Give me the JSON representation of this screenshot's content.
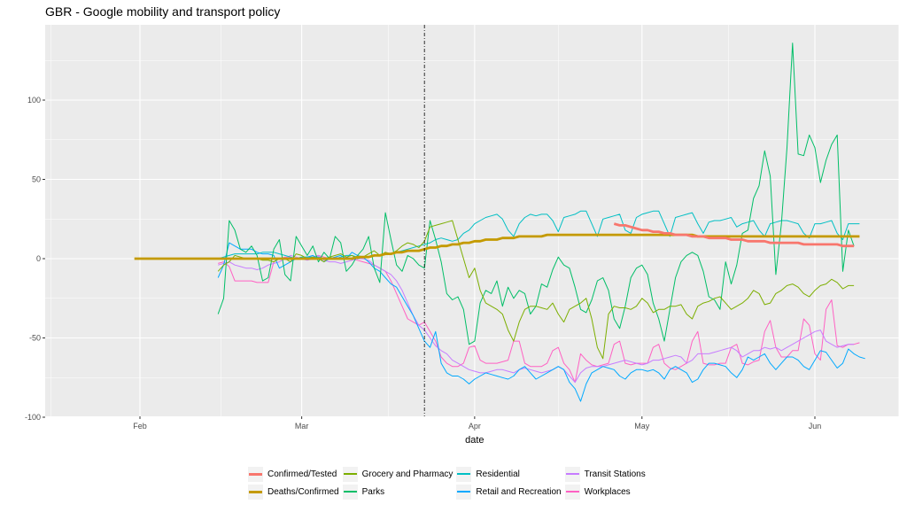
{
  "chart_data": {
    "type": "line",
    "title": "GBR - Google mobility and transport policy",
    "xlabel": "date",
    "ylabel": "",
    "x_type": "date",
    "xlim": [
      "2020-01-20",
      "2020-06-15"
    ],
    "ylim": [
      -100,
      140
    ],
    "x_ticks": [
      {
        "date": "2020-02-01",
        "label": "Feb"
      },
      {
        "date": "2020-03-01",
        "label": "Mar"
      },
      {
        "date": "2020-04-01",
        "label": "Apr"
      },
      {
        "date": "2020-05-01",
        "label": "May"
      },
      {
        "date": "2020-06-01",
        "label": "Jun"
      }
    ],
    "y_ticks": [
      -100,
      -50,
      0,
      50,
      100
    ],
    "grid": true,
    "legend_position": "bottom",
    "vline": {
      "date": "2020-03-23",
      "style": "dash-dot",
      "color": "#000000"
    },
    "series": [
      {
        "name": "Confirmed/Tested",
        "color": "#F8766D",
        "width": "thick",
        "start": "2020-04-26",
        "values": [
          22,
          21,
          21,
          20,
          19,
          18,
          18,
          17,
          17,
          16,
          16,
          15,
          15,
          15,
          14,
          14,
          14,
          13,
          13,
          13,
          13,
          12,
          12,
          12,
          11,
          11,
          11,
          11,
          10,
          10,
          10,
          10,
          10,
          10,
          9,
          9,
          9,
          9,
          9,
          9,
          9,
          8,
          8,
          8
        ]
      },
      {
        "name": "Deaths/Confirmed",
        "color": "#C49A00",
        "width": "thick",
        "start": "2020-01-31",
        "values": [
          0,
          0,
          0,
          0,
          0,
          0,
          0,
          0,
          0,
          0,
          0,
          0,
          0,
          0,
          0,
          0,
          0,
          0,
          0,
          0,
          0,
          0,
          0,
          0,
          0,
          0,
          0,
          0,
          0,
          0,
          0,
          0,
          0,
          0,
          0,
          0,
          0,
          0,
          0,
          0,
          1,
          1,
          1,
          2,
          2,
          3,
          3,
          4,
          4,
          5,
          5,
          5,
          6,
          7,
          7,
          8,
          8,
          9,
          9,
          10,
          10,
          11,
          11,
          12,
          12,
          12,
          13,
          13,
          13,
          14,
          14,
          14,
          14,
          14,
          15,
          15,
          15,
          15,
          15,
          15,
          15,
          15,
          15,
          15,
          15,
          15,
          15,
          15,
          15,
          15,
          15,
          15,
          15,
          15,
          15,
          15,
          15,
          15,
          15,
          15,
          15,
          14,
          14,
          14,
          14,
          14,
          14,
          14,
          14,
          14,
          14,
          14,
          14,
          14,
          14,
          14,
          14,
          14,
          14,
          14,
          14,
          14,
          14,
          14,
          14,
          14,
          14,
          14,
          14,
          14,
          14
        ]
      },
      {
        "name": "Grocery and Pharmacy",
        "color": "#7CAE00",
        "width": "thin",
        "start": "2020-02-15",
        "values": [
          -8,
          -4,
          -2,
          2,
          1,
          0,
          0,
          0,
          -1,
          -1,
          -2,
          0,
          0,
          -2,
          3,
          2,
          0,
          1,
          0,
          -2,
          1,
          2,
          3,
          1,
          2,
          0,
          1,
          3,
          5,
          2,
          4,
          3,
          5,
          8,
          10,
          9,
          7,
          11,
          20,
          21,
          22,
          23,
          24,
          12,
          0,
          -12,
          -6,
          -20,
          -28,
          -30,
          -32,
          -35,
          -45,
          -52,
          -40,
          -32,
          -30,
          -30,
          -31,
          -32,
          -28,
          -35,
          -40,
          -32,
          -30,
          -28,
          -25,
          -38,
          -56,
          -63,
          -35,
          -30,
          -31,
          -31,
          -32,
          -30,
          -25,
          -28,
          -34,
          -32,
          -32,
          -30,
          -30,
          -29,
          -35,
          -38,
          -30,
          -28,
          -27,
          -25,
          -24,
          -28,
          -32,
          -30,
          -28,
          -25,
          -20,
          -22,
          -29,
          -28,
          -22,
          -20,
          -17,
          -16,
          -18,
          -22,
          -24,
          -20,
          -17,
          -16,
          -13,
          -15,
          -19,
          -17,
          -17
        ]
      },
      {
        "name": "Parks",
        "color": "#00BE67",
        "width": "thin",
        "start": "2020-02-15",
        "values": [
          -35,
          -25,
          24,
          18,
          6,
          4,
          8,
          2,
          -14,
          -12,
          6,
          12,
          -10,
          -14,
          14,
          8,
          2,
          8,
          -2,
          4,
          0,
          14,
          10,
          -8,
          -4,
          2,
          6,
          14,
          -6,
          -15,
          29,
          12,
          -4,
          -8,
          2,
          0,
          -4,
          -6,
          24,
          12,
          -2,
          -22,
          -26,
          -24,
          -32,
          -54,
          -52,
          -28,
          -20,
          -22,
          -14,
          -30,
          -18,
          -25,
          -20,
          -22,
          -35,
          -30,
          -16,
          -18,
          -7,
          1,
          -4,
          -6,
          -18,
          -32,
          -34,
          -26,
          -14,
          -12,
          -20,
          -38,
          -44,
          -30,
          -12,
          -6,
          -4,
          -10,
          -28,
          -38,
          -52,
          -32,
          -12,
          -2,
          2,
          4,
          2,
          -8,
          -24,
          -26,
          -32,
          -2,
          -16,
          -4,
          16,
          18,
          38,
          46,
          68,
          52,
          -10,
          22,
          70,
          136,
          66,
          65,
          78,
          70,
          48,
          62,
          72,
          78,
          -8,
          18,
          8
        ]
      },
      {
        "name": "Residential",
        "color": "#00BFC4",
        "width": "thin",
        "start": "2020-02-15",
        "values": [
          0,
          1,
          2,
          3,
          3,
          3,
          3,
          3,
          4,
          4,
          4,
          3,
          2,
          1,
          0,
          1,
          1,
          1,
          1,
          0,
          1,
          0,
          1,
          2,
          2,
          1,
          1,
          1,
          2,
          2,
          3,
          3,
          4,
          5,
          6,
          7,
          8,
          9,
          10,
          12,
          13,
          12,
          11,
          12,
          16,
          18,
          22,
          24,
          26,
          27,
          28,
          25,
          18,
          14,
          22,
          26,
          28,
          27,
          28,
          28,
          24,
          17,
          26,
          27,
          28,
          30,
          30,
          22,
          14,
          25,
          26,
          27,
          28,
          18,
          16,
          26,
          28,
          29,
          30,
          30,
          22,
          14,
          26,
          27,
          28,
          29,
          22,
          16,
          23,
          24,
          24,
          25,
          26,
          20,
          22,
          23,
          24,
          18,
          14,
          22,
          23,
          24,
          24,
          23,
          22,
          16,
          13,
          22,
          22,
          23,
          24,
          16,
          12,
          22,
          22,
          22
        ]
      },
      {
        "name": "Retail and Recreation",
        "color": "#00A9FF",
        "width": "thin",
        "start": "2020-02-15",
        "values": [
          -12,
          -4,
          10,
          8,
          6,
          6,
          6,
          4,
          3,
          3,
          2,
          -6,
          -4,
          -2,
          0,
          1,
          1,
          2,
          0,
          -2,
          0,
          1,
          2,
          0,
          4,
          2,
          1,
          -2,
          -6,
          -8,
          -12,
          -16,
          -18,
          -24,
          -30,
          -36,
          -44,
          -52,
          -56,
          -46,
          -66,
          -72,
          -74,
          -74,
          -76,
          -79,
          -76,
          -74,
          -72,
          -73,
          -74,
          -75,
          -76,
          -74,
          -70,
          -68,
          -72,
          -76,
          -74,
          -72,
          -70,
          -68,
          -70,
          -78,
          -82,
          -90,
          -79,
          -72,
          -70,
          -68,
          -69,
          -70,
          -74,
          -76,
          -72,
          -70,
          -70,
          -71,
          -70,
          -72,
          -76,
          -70,
          -68,
          -70,
          -72,
          -78,
          -76,
          -70,
          -66,
          -66,
          -67,
          -68,
          -72,
          -75,
          -70,
          -62,
          -64,
          -62,
          -60,
          -66,
          -70,
          -66,
          -62,
          -62,
          -64,
          -68,
          -70,
          -64,
          -58,
          -59,
          -64,
          -69,
          -66,
          -57,
          -60,
          -62,
          -63
        ]
      },
      {
        "name": "Transit Stations",
        "color": "#C77CFF",
        "width": "thin",
        "start": "2020-02-15",
        "values": [
          -4,
          -3,
          -2,
          -4,
          -5,
          -6,
          -6,
          -7,
          -6,
          -4,
          -3,
          -2,
          0,
          2,
          1,
          0,
          -1,
          0,
          2,
          -1,
          -2,
          -2,
          -3,
          -2,
          -1,
          0,
          0,
          -1,
          -4,
          -6,
          -8,
          -10,
          -14,
          -20,
          -28,
          -36,
          -42,
          -45,
          -50,
          -55,
          -58,
          -60,
          -64,
          -66,
          -68,
          -70,
          -71,
          -72,
          -72,
          -71,
          -70,
          -70,
          -71,
          -72,
          -70,
          -69,
          -70,
          -71,
          -72,
          -71,
          -70,
          -68,
          -70,
          -74,
          -78,
          -72,
          -69,
          -68,
          -68,
          -68,
          -67,
          -66,
          -65,
          -64,
          -65,
          -66,
          -67,
          -66,
          -64,
          -64,
          -63,
          -62,
          -61,
          -62,
          -66,
          -64,
          -60,
          -60,
          -60,
          -59,
          -58,
          -57,
          -56,
          -58,
          -62,
          -60,
          -58,
          -58,
          -56,
          -57,
          -56,
          -58,
          -56,
          -54,
          -52,
          -50,
          -48,
          -46,
          -45,
          -52,
          -54,
          -56,
          -55,
          -54,
          -54
        ]
      },
      {
        "name": "Workplaces",
        "color": "#FF61C3",
        "width": "thin",
        "start": "2020-02-15",
        "values": [
          -3,
          -2,
          -5,
          -14,
          -14,
          -14,
          -14,
          -15,
          -15,
          -15,
          -2,
          0,
          1,
          1,
          0,
          0,
          1,
          1,
          2,
          1,
          0,
          1,
          0,
          1,
          0,
          -1,
          -2,
          -3,
          -4,
          -6,
          -8,
          -14,
          -22,
          -30,
          -38,
          -40,
          -42,
          -40,
          -46,
          -52,
          -62,
          -66,
          -68,
          -68,
          -66,
          -56,
          -55,
          -64,
          -66,
          -66,
          -66,
          -65,
          -64,
          -52,
          -52,
          -66,
          -68,
          -68,
          -68,
          -66,
          -58,
          -56,
          -66,
          -70,
          -78,
          -60,
          -64,
          -67,
          -68,
          -67,
          -66,
          -54,
          -52,
          -66,
          -67,
          -66,
          -66,
          -66,
          -56,
          -54,
          -66,
          -69,
          -70,
          -68,
          -66,
          -52,
          -46,
          -66,
          -67,
          -67,
          -66,
          -66,
          -56,
          -54,
          -66,
          -67,
          -65,
          -64,
          -46,
          -39,
          -56,
          -62,
          -62,
          -58,
          -58,
          -38,
          -42,
          -60,
          -64,
          -32,
          -26,
          -55,
          -56,
          -54,
          -54,
          -53
        ]
      }
    ]
  }
}
